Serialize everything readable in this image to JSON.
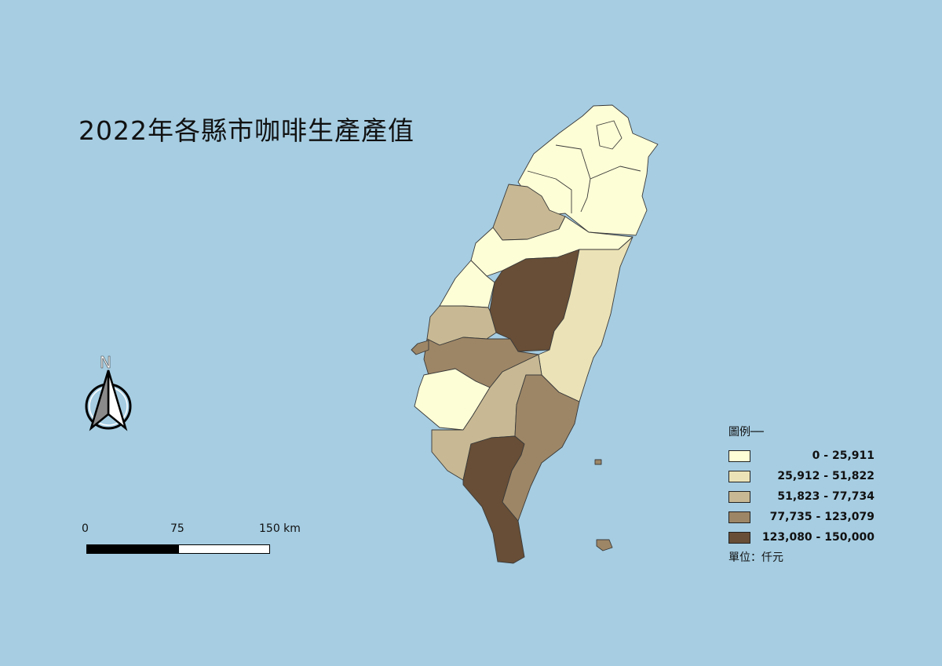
{
  "title": "2022年各縣市咖啡生產產值",
  "north": {
    "label": "N",
    "icon": "north-arrow-icon"
  },
  "scale": {
    "ticks": [
      "0",
      "75",
      "150 km"
    ]
  },
  "legend": {
    "title": "圖例──",
    "unit": "單位：仟元",
    "classes": [
      {
        "label": "0 - 25,911",
        "color": "#fefed6"
      },
      {
        "label": "25,912 - 51,822",
        "color": "#ebe2b7"
      },
      {
        "label": "51,823 - 77,734",
        "color": "#c8b994"
      },
      {
        "label": "77,735 - 123,079",
        "color": "#9d8666"
      },
      {
        "label": "123,080 - 150,000",
        "color": "#684e36"
      }
    ]
  },
  "colors": {
    "sea": "#a6cde2",
    "border": "#3a3a3a"
  },
  "regions": [
    {
      "name": "north-cluster",
      "class": 0
    },
    {
      "name": "miaoli",
      "class": 2
    },
    {
      "name": "taichung",
      "class": 0
    },
    {
      "name": "changhua",
      "class": 0
    },
    {
      "name": "nantou",
      "class": 4
    },
    {
      "name": "hualien",
      "class": 1
    },
    {
      "name": "yunlin",
      "class": 2
    },
    {
      "name": "chiayi",
      "class": 3
    },
    {
      "name": "tainan",
      "class": 0
    },
    {
      "name": "kaohsiung",
      "class": 2
    },
    {
      "name": "pingtung",
      "class": 4
    },
    {
      "name": "taitung",
      "class": 3
    },
    {
      "name": "penghu",
      "class": 3
    }
  ]
}
